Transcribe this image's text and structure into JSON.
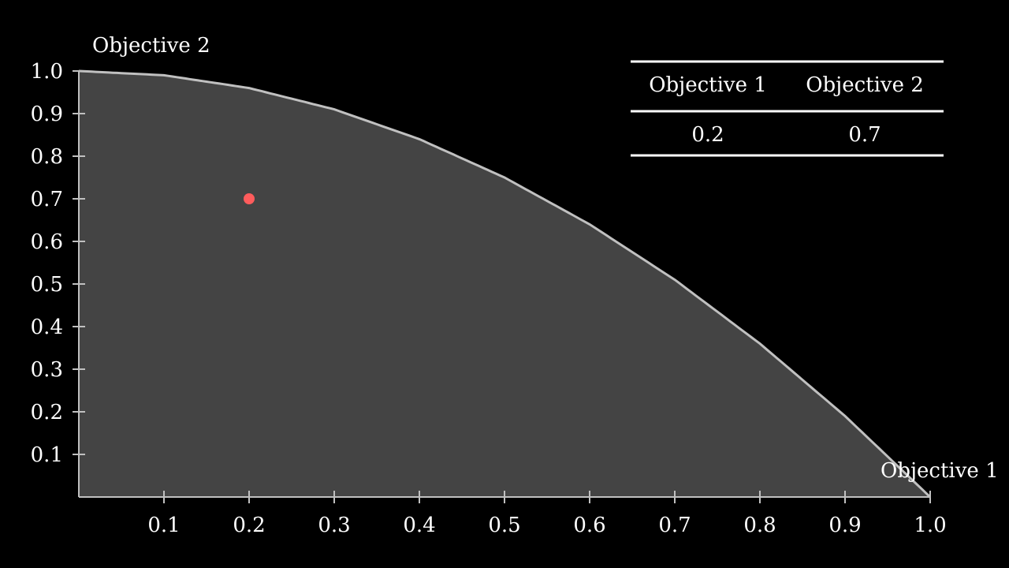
{
  "colors": {
    "background": "#000000",
    "feasible_fill": "#444444",
    "frontier_stroke": "#c0c0c0",
    "axis": "#c0c0c0",
    "point": "#ff5c5c",
    "table_rule": "#ffffff"
  },
  "chart_data": {
    "type": "area",
    "xlabel": "Objective 1",
    "ylabel": "Objective 2",
    "xlim": [
      0,
      1
    ],
    "ylim": [
      0,
      1
    ],
    "grid": false,
    "x_ticks": [
      "0.1",
      "0.2",
      "0.3",
      "0.4",
      "0.5",
      "0.6",
      "0.7",
      "0.8",
      "0.9",
      "1.0"
    ],
    "y_ticks": [
      "0.1",
      "0.2",
      "0.3",
      "0.4",
      "0.5",
      "0.6",
      "0.7",
      "0.8",
      "0.9",
      "1.0"
    ],
    "frontier": {
      "x": [
        0,
        0.1,
        0.2,
        0.3,
        0.4,
        0.5,
        0.6,
        0.7,
        0.8,
        0.9,
        1.0
      ],
      "y": [
        1.0,
        0.99,
        0.96,
        0.91,
        0.84,
        0.75,
        0.64,
        0.51,
        0.36,
        0.19,
        0.0
      ]
    },
    "point": {
      "x": 0.2,
      "y": 0.7
    },
    "table": {
      "headers": [
        "Objective 1",
        "Objective 2"
      ],
      "rows": [
        [
          "0.2",
          "0.7"
        ]
      ]
    }
  }
}
